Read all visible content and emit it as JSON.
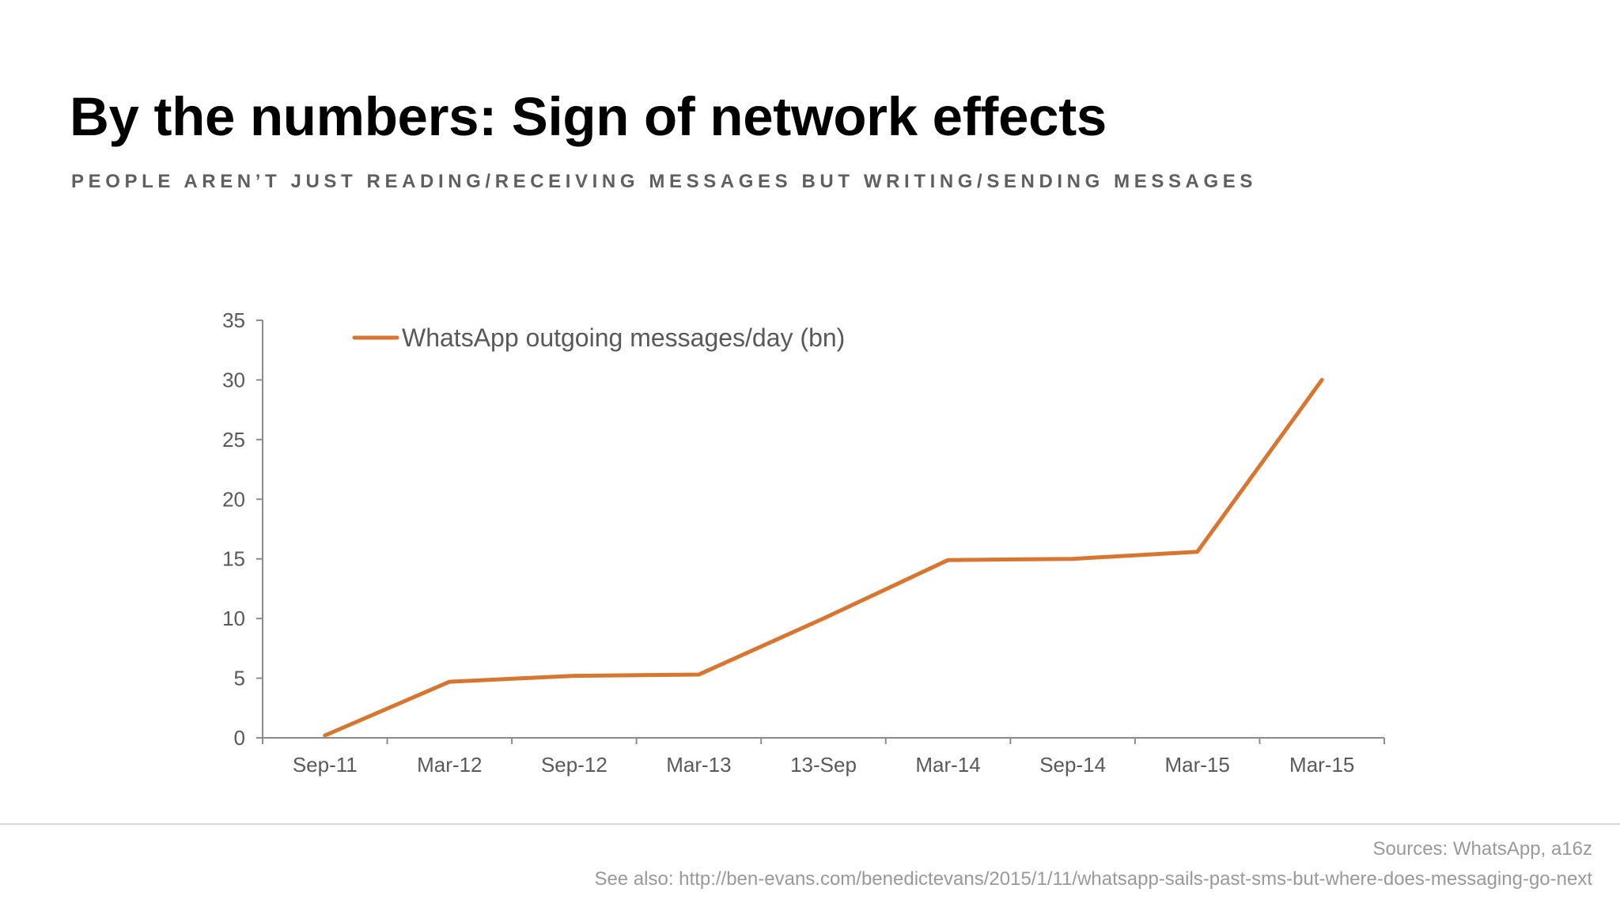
{
  "slide": {
    "title": "By the numbers: Sign of network effects",
    "subtitle": "PEOPLE AREN’T JUST READING/RECEIVING MESSAGES BUT WRITING/SENDING MESSAGES"
  },
  "footer": {
    "sources": "Sources: WhatsApp, a16z",
    "see_also": "See also: http://ben-evans.com/benedictevans/2015/1/11/whatsapp-sails-past-sms-but-where-does-messaging-go-next"
  },
  "colors": {
    "series_line": "#d9752f",
    "axis": "#8c8c8c",
    "tick_label": "#595959",
    "legend_text": "#595959"
  },
  "chart_data": {
    "type": "line",
    "title": "",
    "xlabel": "",
    "ylabel": "",
    "categories": [
      "Sep-11",
      "Mar-12",
      "Sep-12",
      "Mar-13",
      "13-Sep",
      "Mar-14",
      "Sep-14",
      "Mar-15",
      "Mar-15"
    ],
    "series": [
      {
        "name": "WhatsApp outgoing messages/day (bn)",
        "values": [
          0.2,
          4.7,
          5.2,
          5.3,
          10.0,
          14.9,
          15.0,
          15.6,
          30.0
        ]
      }
    ],
    "ylim": [
      0,
      35
    ],
    "yticks": [
      0,
      5,
      10,
      15,
      20,
      25,
      30,
      35
    ],
    "grid": false,
    "legend_position": "top-left"
  }
}
